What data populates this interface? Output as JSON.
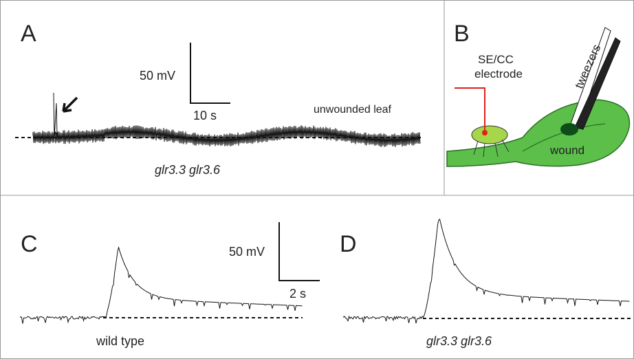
{
  "panels": [
    {
      "label": "A",
      "scale_y": "50 mV",
      "scale_x": "10 s",
      "note": "unwounded leaf",
      "genotype": "glr3.3 glr3.6"
    },
    {
      "label": "B",
      "electrode": [
        "SE/CC",
        "electrode"
      ],
      "tool": "tweezers",
      "site": "wound"
    },
    {
      "label": "C",
      "scale_y": "50 mV",
      "scale_x": "2 s",
      "genotype": "wild type"
    },
    {
      "label": "D",
      "genotype": "glr3.3 glr3.6"
    }
  ]
}
